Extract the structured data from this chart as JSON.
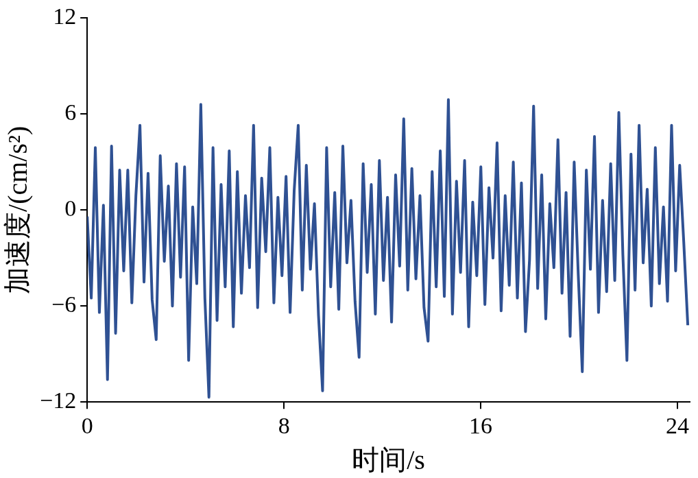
{
  "chart_data": {
    "type": "line",
    "xlabel": "时间/s",
    "ylabel": "加速度/(cm/s²)",
    "xlim": [
      0,
      24.5
    ],
    "xticks": [
      0,
      8,
      16,
      24
    ],
    "ylim": [
      -12,
      12
    ],
    "yticks": [
      {
        "value": -12,
        "label": "−12"
      },
      {
        "value": -6,
        "label": "−6"
      },
      0,
      6,
      12
    ],
    "grid": false,
    "legend": false,
    "marker": "none",
    "line_style": "solid",
    "series": [
      {
        "color": "#2f5193",
        "x": [
          0,
          0.165,
          0.33,
          0.495,
          0.66,
          0.825,
          0.99,
          1.155,
          1.32,
          1.485,
          1.65,
          1.815,
          1.98,
          2.145,
          2.31,
          2.475,
          2.64,
          2.805,
          2.97,
          3.135,
          3.3,
          3.465,
          3.63,
          3.795,
          3.96,
          4.125,
          4.29,
          4.455,
          4.62,
          4.785,
          4.95,
          5.115,
          5.28,
          5.445,
          5.61,
          5.775,
          5.94,
          6.105,
          6.27,
          6.435,
          6.6,
          6.765,
          6.93,
          7.095,
          7.26,
          7.425,
          7.59,
          7.755,
          7.92,
          8.085,
          8.25,
          8.415,
          8.58,
          8.745,
          8.91,
          9.075,
          9.24,
          9.405,
          9.57,
          9.735,
          9.9,
          10.065,
          10.23,
          10.395,
          10.56,
          10.725,
          10.89,
          11.055,
          11.22,
          11.385,
          11.55,
          11.715,
          11.88,
          12.045,
          12.21,
          12.375,
          12.54,
          12.705,
          12.87,
          13.035,
          13.2,
          13.365,
          13.53,
          13.695,
          13.86,
          14.025,
          14.19,
          14.355,
          14.52,
          14.685,
          14.85,
          15.015,
          15.18,
          15.345,
          15.51,
          15.675,
          15.84,
          16.005,
          16.17,
          16.335,
          16.5,
          16.665,
          16.83,
          16.995,
          17.16,
          17.325,
          17.49,
          17.655,
          17.82,
          17.985,
          18.15,
          18.315,
          18.48,
          18.645,
          18.81,
          18.975,
          19.14,
          19.305,
          19.47,
          19.635,
          19.8,
          19.965,
          20.13,
          20.295,
          20.46,
          20.625,
          20.79,
          20.955,
          21.12,
          21.285,
          21.45,
          21.615,
          21.78,
          21.945,
          22.11,
          22.275,
          22.44,
          22.605,
          22.77,
          22.935,
          23.1,
          23.265,
          23.43,
          23.595,
          23.76,
          23.925,
          24.09,
          24.255,
          24.42
        ],
        "values": [
          -0.4,
          -5.5,
          3.9,
          -6.4,
          0.3,
          -10.6,
          4.0,
          -7.7,
          2.5,
          -3.8,
          2.5,
          -5.8,
          0.9,
          5.3,
          -4.5,
          2.3,
          -5.6,
          -8.1,
          3.4,
          -3.2,
          1.5,
          -6.0,
          2.9,
          -4.2,
          2.7,
          -9.4,
          0.2,
          -4.6,
          6.6,
          -5.5,
          -11.7,
          3.9,
          -6.9,
          1.6,
          -4.8,
          3.7,
          -7.3,
          2.4,
          -5.2,
          0.9,
          -3.6,
          5.3,
          -6.1,
          2.0,
          -2.6,
          3.9,
          -5.8,
          0.8,
          -4.1,
          2.1,
          -6.4,
          1.2,
          5.3,
          -5.0,
          2.8,
          -3.7,
          0.4,
          -6.6,
          -11.3,
          3.9,
          -4.8,
          1.1,
          -6.2,
          4.0,
          -3.3,
          0.6,
          -5.7,
          -9.2,
          2.9,
          -3.9,
          1.6,
          -6.5,
          3.1,
          -4.4,
          0.8,
          -7.0,
          2.2,
          -3.5,
          5.7,
          -5.0,
          2.6,
          -4.3,
          0.9,
          -6.1,
          -8.2,
          2.4,
          -4.8,
          3.7,
          -5.4,
          6.9,
          -6.5,
          1.8,
          -3.9,
          3.1,
          -7.3,
          0.5,
          -4.1,
          2.7,
          -5.9,
          1.4,
          -3.0,
          4.2,
          -6.3,
          0.9,
          -4.7,
          3.0,
          -5.5,
          1.7,
          -7.6,
          -3.1,
          6.5,
          -4.9,
          2.2,
          -6.8,
          0.4,
          -3.6,
          4.4,
          -5.2,
          1.1,
          -7.9,
          3.0,
          -4.0,
          -10.1,
          2.5,
          -3.7,
          4.6,
          -6.4,
          0.6,
          -5.1,
          2.9,
          -4.4,
          6.1,
          -2.8,
          -9.4,
          3.5,
          -5.0,
          5.3,
          -3.3,
          1.3,
          -6.0,
          3.9,
          -4.6,
          0.2,
          -5.7,
          5.3,
          -3.8,
          2.8,
          -2.0,
          -7.2
        ]
      }
    ]
  }
}
